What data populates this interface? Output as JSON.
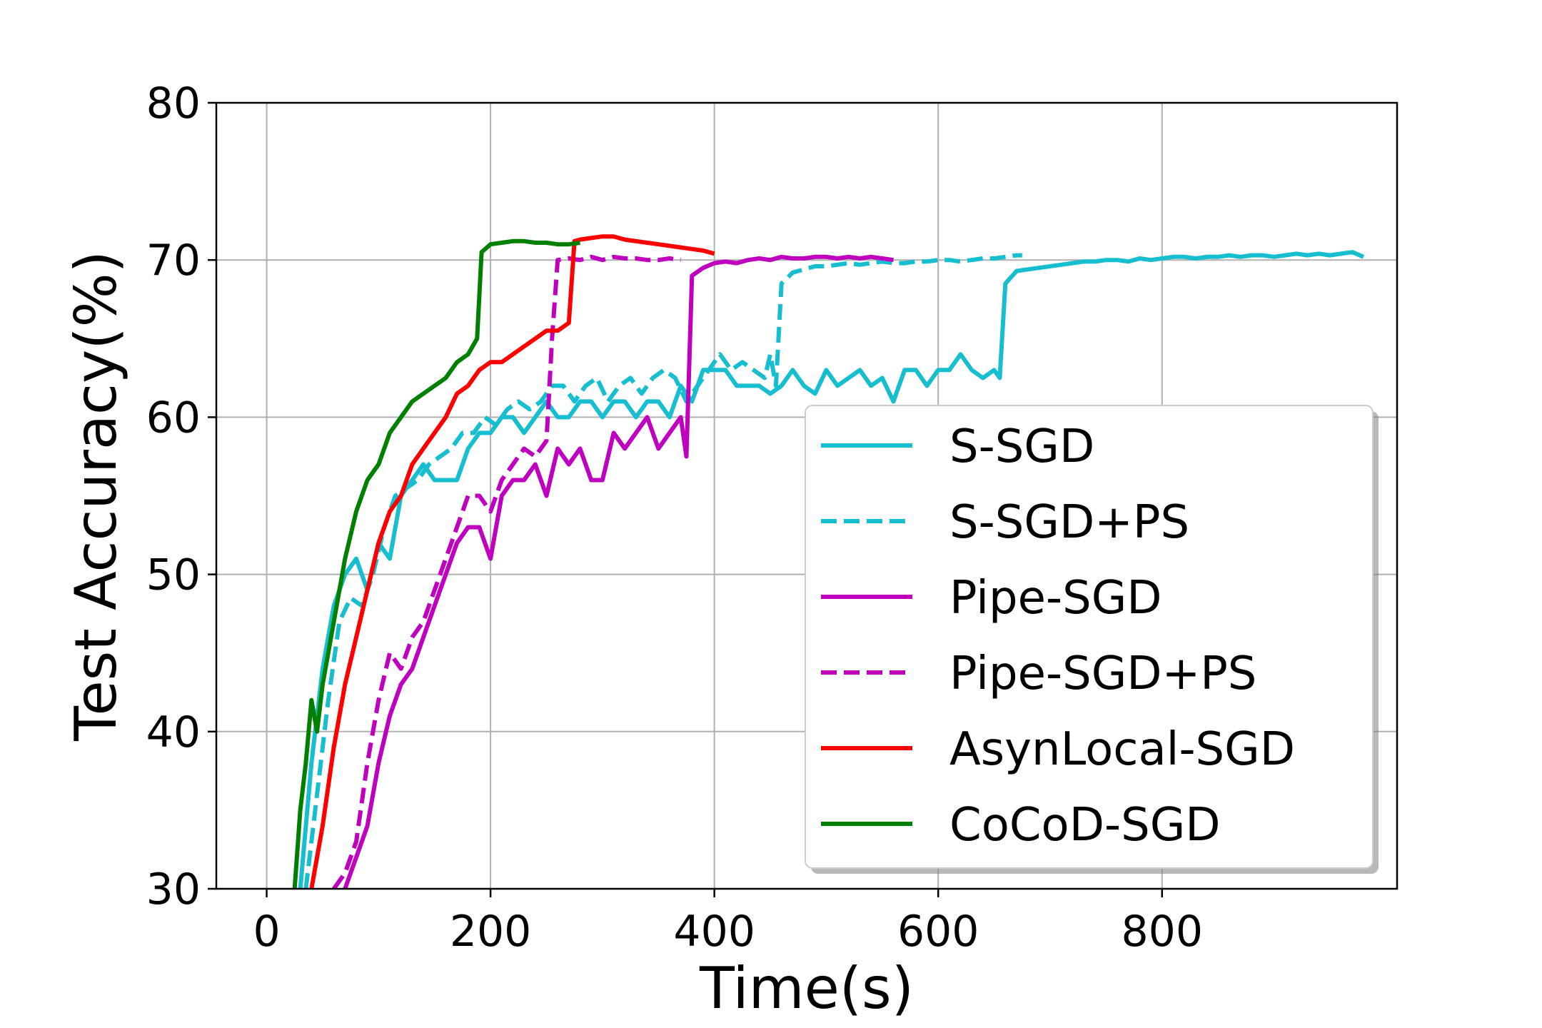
{
  "chart_data": {
    "type": "line",
    "title": "",
    "xlabel": "Time(s)",
    "ylabel": "Test Accuracy(%)",
    "xlim": [
      -45,
      1010
    ],
    "ylim": [
      30,
      80
    ],
    "xticks": [
      0,
      200,
      400,
      600,
      800
    ],
    "yticks": [
      30,
      40,
      50,
      60,
      70,
      80
    ],
    "grid": true,
    "legend_position": "center-right",
    "series": [
      {
        "name": "S-SGD",
        "color": "#17becf",
        "dash": "solid",
        "x": [
          30,
          40,
          50,
          60,
          70,
          80,
          90,
          100,
          110,
          120,
          130,
          140,
          150,
          160,
          170,
          180,
          190,
          200,
          210,
          220,
          230,
          240,
          250,
          260,
          270,
          280,
          290,
          300,
          310,
          320,
          330,
          340,
          350,
          360,
          370,
          380,
          390,
          400,
          410,
          420,
          430,
          440,
          450,
          460,
          470,
          480,
          490,
          500,
          510,
          520,
          530,
          540,
          550,
          560,
          570,
          580,
          590,
          600,
          610,
          620,
          630,
          640,
          650,
          655,
          660,
          670,
          680,
          690,
          700,
          710,
          720,
          730,
          740,
          750,
          760,
          770,
          780,
          790,
          800,
          810,
          820,
          830,
          840,
          850,
          860,
          870,
          880,
          890,
          900,
          910,
          920,
          930,
          940,
          950,
          960,
          970,
          980
        ],
        "y": [
          30,
          38,
          44,
          48,
          50,
          51,
          49,
          52,
          51,
          55,
          56,
          57,
          56,
          56,
          56,
          58,
          59,
          59,
          60,
          60,
          59,
          60,
          61,
          60,
          60,
          61,
          61,
          60,
          61,
          61,
          60,
          61,
          61,
          60,
          62,
          61,
          63,
          63,
          63,
          62,
          62,
          62,
          61.5,
          62,
          63,
          62,
          61.5,
          63,
          62,
          62.5,
          63,
          62,
          62.5,
          61,
          63,
          63,
          62,
          63,
          63,
          64,
          63,
          62.5,
          63,
          62.5,
          68.5,
          69.3,
          69.4,
          69.5,
          69.6,
          69.7,
          69.8,
          69.9,
          69.9,
          70.0,
          70.0,
          69.9,
          70.1,
          70.0,
          70.1,
          70.2,
          70.2,
          70.1,
          70.2,
          70.2,
          70.3,
          70.2,
          70.3,
          70.3,
          70.2,
          70.3,
          70.4,
          70.3,
          70.4,
          70.3,
          70.4,
          70.5,
          70.2
        ]
      },
      {
        "name": "S-SGD+PS",
        "color": "#17becf",
        "dash": "dashed",
        "x": [
          35,
          45,
          55,
          65,
          75,
          85,
          95,
          105,
          115,
          125,
          135,
          145,
          155,
          165,
          175,
          185,
          195,
          205,
          215,
          225,
          235,
          245,
          255,
          265,
          275,
          285,
          295,
          305,
          315,
          325,
          335,
          345,
          355,
          365,
          375,
          385,
          395,
          405,
          415,
          425,
          435,
          445,
          450,
          455,
          460,
          470,
          480,
          490,
          500,
          510,
          520,
          530,
          540,
          550,
          560,
          570,
          580,
          590,
          600,
          610,
          620,
          630,
          640,
          650,
          660,
          670,
          675
        ],
        "y": [
          30,
          36,
          42,
          47,
          48.5,
          48,
          50,
          53,
          55,
          55.5,
          56,
          57,
          57.5,
          58,
          59,
          59,
          60,
          59.5,
          60.5,
          61,
          60.5,
          61,
          62,
          62,
          61,
          62,
          62.5,
          61,
          62,
          62.5,
          61.5,
          62.5,
          63,
          62.5,
          61,
          62,
          63,
          64,
          63,
          63.5,
          63,
          62.5,
          64,
          62,
          68.5,
          69.2,
          69.4,
          69.6,
          69.6,
          69.7,
          69.8,
          69.7,
          69.8,
          69.9,
          69.8,
          69.8,
          69.9,
          69.9,
          70.0,
          70.0,
          69.9,
          70.0,
          70.1,
          70.1,
          70.2,
          70.3,
          70.3
        ]
      },
      {
        "name": "Pipe-SGD",
        "color": "#bf00bf",
        "dash": "solid",
        "x": [
          70,
          80,
          90,
          100,
          110,
          120,
          130,
          140,
          150,
          160,
          170,
          180,
          190,
          200,
          210,
          220,
          230,
          240,
          250,
          260,
          270,
          280,
          290,
          300,
          310,
          320,
          330,
          340,
          350,
          360,
          370,
          375,
          380,
          390,
          400,
          410,
          420,
          430,
          440,
          450,
          460,
          470,
          480,
          490,
          500,
          510,
          520,
          530,
          540,
          550,
          560
        ],
        "y": [
          30,
          32,
          34,
          38,
          41,
          43,
          44,
          46,
          48,
          50,
          52,
          53,
          53,
          51,
          55,
          56,
          56,
          57,
          55,
          58,
          57,
          58,
          56,
          56,
          59,
          58,
          59,
          60,
          58,
          59,
          60,
          57.5,
          69,
          69.5,
          69.8,
          69.9,
          69.8,
          70.0,
          70.1,
          70.0,
          70.2,
          70.1,
          70.1,
          70.2,
          70.2,
          70.1,
          70.2,
          70.1,
          70.2,
          70.1,
          70.0
        ]
      },
      {
        "name": "Pipe-SGD+PS",
        "color": "#bf00bf",
        "dash": "dashed",
        "x": [
          60,
          70,
          80,
          90,
          100,
          110,
          120,
          130,
          140,
          150,
          160,
          170,
          180,
          190,
          200,
          210,
          220,
          230,
          240,
          250,
          255,
          260,
          270,
          280,
          290,
          300,
          310,
          320,
          330,
          340,
          350,
          360,
          370
        ],
        "y": [
          30,
          31,
          33,
          38,
          42,
          45,
          44,
          46,
          47,
          49,
          51,
          53,
          55,
          55,
          54,
          56,
          57,
          58,
          57.5,
          58.5,
          65,
          70.0,
          70.1,
          70.0,
          70.2,
          70.0,
          70.2,
          70.1,
          70.1,
          70.0,
          70.0,
          70.1,
          70.0
        ]
      },
      {
        "name": "AsynLocal-SGD",
        "color": "#ff0000",
        "dash": "solid",
        "x": [
          40,
          50,
          60,
          70,
          80,
          90,
          100,
          110,
          120,
          130,
          140,
          150,
          160,
          170,
          180,
          190,
          200,
          210,
          220,
          230,
          240,
          250,
          260,
          270,
          275,
          280,
          290,
          300,
          310,
          320,
          330,
          340,
          350,
          360,
          370,
          380,
          390,
          400
        ],
        "y": [
          30,
          34,
          39,
          43,
          46,
          49,
          52,
          54,
          55,
          57,
          58,
          59,
          60,
          61.5,
          62,
          63,
          63.5,
          63.5,
          64,
          64.5,
          65,
          65.5,
          65.5,
          66,
          71.2,
          71.3,
          71.4,
          71.5,
          71.5,
          71.3,
          71.2,
          71.1,
          71.0,
          70.9,
          70.8,
          70.7,
          70.6,
          70.4
        ]
      },
      {
        "name": "CoCoD-SGD",
        "color": "#008000",
        "dash": "solid",
        "x": [
          25,
          30,
          35,
          40,
          45,
          50,
          55,
          60,
          70,
          80,
          90,
          100,
          110,
          120,
          130,
          140,
          150,
          160,
          170,
          180,
          188,
          192,
          200,
          210,
          220,
          230,
          240,
          250,
          260,
          270,
          280
        ],
        "y": [
          30,
          35,
          38,
          42,
          40,
          43,
          45,
          47,
          51,
          54,
          56,
          57,
          59,
          60,
          61,
          61.5,
          62,
          62.5,
          63.5,
          64,
          65,
          70.5,
          71.0,
          71.1,
          71.2,
          71.2,
          71.1,
          71.1,
          71.0,
          71.0,
          71.1
        ]
      }
    ]
  }
}
